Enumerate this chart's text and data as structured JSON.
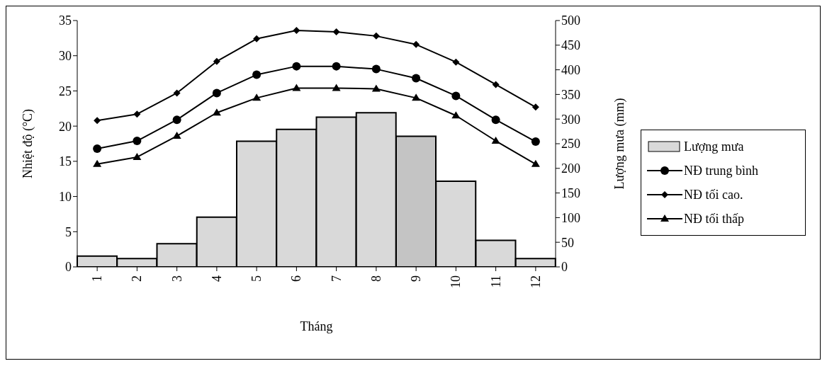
{
  "chart_data": {
    "type": "bar",
    "xlabel": "Tháng",
    "ylabel": "Nhiệt độ (°C)",
    "y2label": "Lượng mưa (mm)",
    "categories": [
      "1",
      "2",
      "3",
      "4",
      "5",
      "6",
      "7",
      "8",
      "9",
      "10",
      "11",
      "12"
    ],
    "series": [
      {
        "name": "Lượng mưa",
        "axis": "y2",
        "color": "#d9d9d9",
        "colors": [
          "#d9d9d9",
          "#d9d9d9",
          "#d9d9d9",
          "#d9d9d9",
          "#d9d9d9",
          "#d9d9d9",
          "#d9d9d9",
          "#d9d9d9",
          "#c4c4c4",
          "#d9d9d9",
          "#d9d9d9",
          "#d9d9d9"
        ],
        "values": [
          22,
          17,
          47,
          101,
          255,
          279,
          304,
          313,
          265,
          174,
          54,
          17
        ]
      },
      {
        "type": "line",
        "name": "NĐ trung bình",
        "color": "#000000",
        "marker": "circle",
        "values": [
          16.8,
          17.9,
          20.9,
          24.7,
          27.3,
          28.5,
          28.5,
          28.1,
          26.8,
          24.3,
          20.9,
          17.8
        ]
      },
      {
        "type": "line",
        "name": "NĐ tối cao.",
        "color": "#000000",
        "marker": "diamond",
        "values": [
          20.8,
          21.7,
          24.7,
          29.2,
          32.4,
          33.6,
          33.4,
          32.8,
          31.6,
          29.1,
          25.9,
          22.7
        ]
      },
      {
        "type": "line",
        "name": "NĐ tối thấp",
        "color": "#000000",
        "marker": "triangle",
        "values": [
          14.6,
          15.6,
          18.6,
          21.9,
          24.0,
          25.4,
          25.4,
          25.3,
          24.0,
          21.5,
          17.9,
          14.6
        ]
      }
    ],
    "ylim": [
      0,
      35
    ],
    "yticks": [
      0,
      5,
      10,
      15,
      20,
      25,
      30,
      35
    ],
    "y2lim": [
      0,
      500
    ],
    "y2ticks": [
      0,
      50,
      100,
      150,
      200,
      250,
      300,
      350,
      400,
      450,
      500
    ],
    "grid": false,
    "legend": "right",
    "line_style": "solid"
  }
}
